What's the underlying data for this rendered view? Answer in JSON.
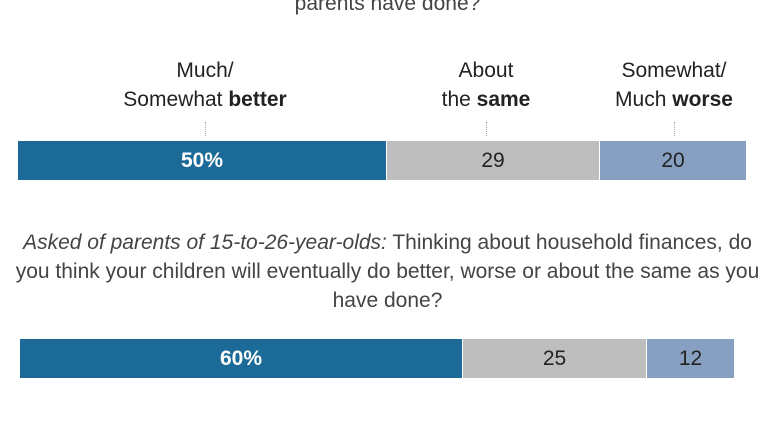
{
  "question1_tail": "parents have done?",
  "categories": [
    {
      "line1": "Much/",
      "line2_prefix": "Somewhat ",
      "line2_bold": "better"
    },
    {
      "line1": "About",
      "line2_prefix": "the ",
      "line2_bold": "same"
    },
    {
      "line1": "Somewhat/",
      "line2_prefix": "Much ",
      "line2_bold": "worse"
    }
  ],
  "question2": {
    "lead": "Asked of parents of 15-to-26-year-olds:",
    "text": " Thinking about household finances, do you think your children will eventually do better, worse or about the same as you have done?"
  },
  "colors": {
    "better": "#1c6a97",
    "same": "#bebebe",
    "worse": "#879fc0"
  },
  "chart_data": {
    "type": "bar",
    "orientation": "horizontal-stacked",
    "categories": [
      "Much/Somewhat better",
      "About the same",
      "Somewhat/Much worse"
    ],
    "bars": [
      {
        "values": [
          50,
          29,
          20
        ],
        "labels": [
          "50%",
          "29",
          "20"
        ]
      },
      {
        "values": [
          60,
          25,
          12
        ],
        "labels": [
          "60%",
          "25",
          "12"
        ]
      }
    ]
  }
}
